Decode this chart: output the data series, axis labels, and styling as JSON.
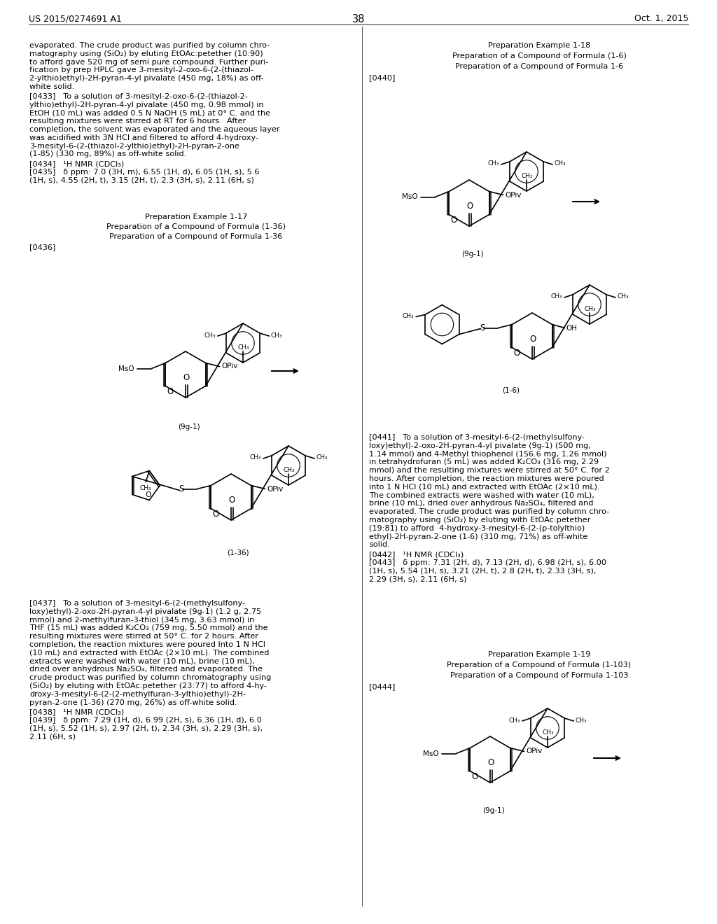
{
  "patent_number": "US 2015/0274691 A1",
  "patent_date": "Oct. 1, 2015",
  "page_number": "38",
  "bg": "#ffffff",
  "font_body": 8.1,
  "font_header": 9.0,
  "font_page": 10.5
}
